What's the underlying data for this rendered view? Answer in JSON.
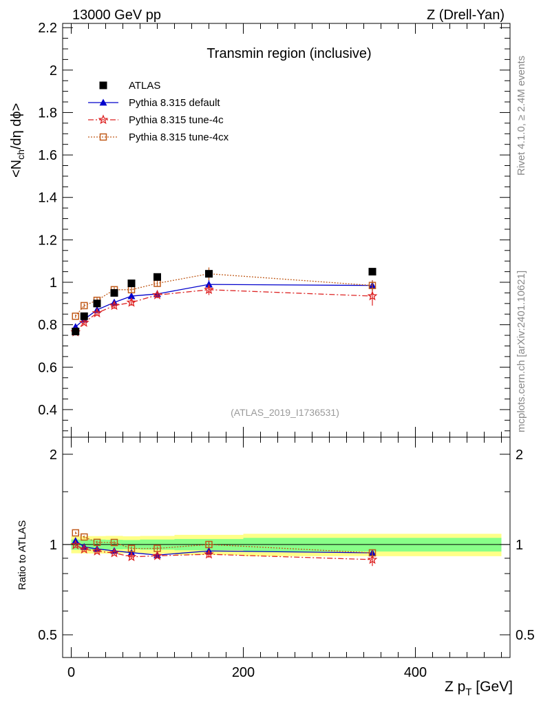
{
  "header": {
    "left": "13000 GeV pp",
    "right": "Z (Drell-Yan)"
  },
  "side": {
    "rivet": "Rivet 4.1.0, ≥ 2.4M events",
    "mcplots": "mcplots.cern.ch [arXiv:2401.10621]"
  },
  "chart_data": {
    "type": "scatter",
    "title": "Transmin region (inclusive)",
    "analysis_label": "(ATLAS_2019_I1736531)",
    "ylabel_parts": [
      "<N",
      "ch",
      "/dη dϕ>"
    ],
    "xlabel_parts": [
      "Z p",
      "T",
      " [GeV]"
    ],
    "ratio_ylabel": "Ratio to ATLAS",
    "xlim": [
      -10,
      510
    ],
    "ylim": [
      0.27,
      2.22
    ],
    "ratio_ylim": [
      0.42,
      2.28
    ],
    "xticks": [
      0,
      200,
      400
    ],
    "xtick_labels": [
      "0",
      "200",
      "400"
    ],
    "yticks": [
      0.4,
      0.6,
      0.8,
      1,
      1.2,
      1.4,
      1.6,
      1.8,
      2,
      2.2
    ],
    "ytick_labels": [
      "0.4",
      "0.6",
      "0.8",
      "1",
      "1.2",
      "1.4",
      "1.6",
      "1.8",
      "2",
      "2.2"
    ],
    "ratio_yticks": [
      0.5,
      1,
      2
    ],
    "ratio_ytick_labels": [
      "0.5",
      "1",
      "2"
    ],
    "x": [
      5,
      15,
      30,
      50,
      70,
      100,
      160,
      350
    ],
    "bin_edges": [
      0,
      10,
      20,
      40,
      60,
      80,
      120,
      200,
      500
    ],
    "data": {
      "name": "ATLAS",
      "values": [
        0.768,
        0.84,
        0.9,
        0.95,
        0.995,
        1.025,
        1.04,
        1.05
      ],
      "band_inner": [
        0.03,
        0.03,
        0.035,
        0.035,
        0.035,
        0.04,
        0.045,
        0.055
      ],
      "band_outer": [
        0.05,
        0.055,
        0.06,
        0.065,
        0.065,
        0.07,
        0.08,
        0.09
      ]
    },
    "series": [
      {
        "name": "Pythia 8.315 default",
        "color": "#0000cc",
        "marker": "triangle",
        "dash": "",
        "values": [
          0.79,
          0.825,
          0.87,
          0.905,
          0.935,
          0.945,
          0.99,
          0.985
        ],
        "errors": [
          0.008,
          0.008,
          0.01,
          0.012,
          0.015,
          0.015,
          0.02,
          0.025
        ]
      },
      {
        "name": "Pythia 8.315 tune-4c",
        "color": "#dd2222",
        "marker": "star",
        "dash": "8,3,2,3",
        "values": [
          0.765,
          0.81,
          0.855,
          0.89,
          0.905,
          0.94,
          0.965,
          0.935
        ],
        "errors": [
          0.008,
          0.01,
          0.012,
          0.015,
          0.015,
          0.015,
          0.025,
          0.045
        ]
      },
      {
        "name": "Pythia 8.315 tune-4cx",
        "color": "#c05a1a",
        "marker": "square-open",
        "dash": "2,2",
        "values": [
          0.84,
          0.89,
          0.915,
          0.965,
          0.965,
          0.995,
          1.04,
          0.985
        ],
        "errors": [
          0.008,
          0.01,
          0.012,
          0.012,
          0.015,
          0.015,
          0.03,
          0.025
        ]
      }
    ]
  }
}
